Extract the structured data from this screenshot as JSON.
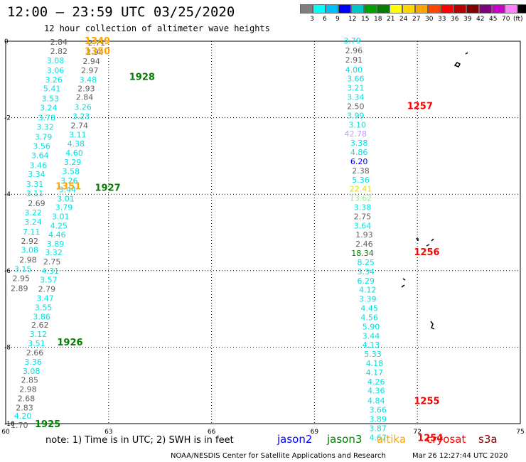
{
  "header": {
    "title": "12:00 — 23:59 UTC 03/25/2020",
    "subtitle": "12 hour collection of altimeter wave heights"
  },
  "colorbar": {
    "colors": [
      "#7f7f7f",
      "#00ffff",
      "#00bfff",
      "#0000ff",
      "#00c8c8",
      "#00a000",
      "#008000",
      "#ffff00",
      "#ffd700",
      "#ffa500",
      "#ff4500",
      "#ff0000",
      "#b40000",
      "#800000",
      "#800080",
      "#c800c8",
      "#ff80ff",
      "#000000"
    ],
    "labels": [
      "3",
      "6",
      "9",
      "12",
      "15",
      "18",
      "21",
      "24",
      "27",
      "30",
      "33",
      "36",
      "39",
      "42",
      "45",
      "70"
    ],
    "unit": "(ft)"
  },
  "chart_data": {
    "type": "scatter",
    "xlim": [
      60,
      75
    ],
    "ylim": [
      -10,
      0
    ],
    "x_ticks": [
      "60",
      "63",
      "66",
      "69",
      "72",
      "75"
    ],
    "y_ticks": [
      "0",
      "-2",
      "-4",
      "-6",
      "-8",
      "-10"
    ],
    "satellite_colors": {
      "jason2": "#0000ff",
      "jason3": "#008000",
      "altika": "#ffa500",
      "cryosat": "#ff0000",
      "s3a": "#800000"
    },
    "value_colors": {
      "gray": "#606060",
      "cyan": "#00e0e0",
      "lavender": "#c0a0ff",
      "blue": "#0000ff",
      "green": "#008000",
      "yellow": "#e0e000",
      "lightgreen": "#90ee90"
    },
    "points": [
      {
        "x": 61.55,
        "y": -0.02,
        "v": "2.84",
        "c": "gray"
      },
      {
        "x": 61.55,
        "y": -0.26,
        "v": "2.82",
        "c": "gray"
      },
      {
        "x": 61.45,
        "y": -0.5,
        "v": "3.08",
        "c": "cyan"
      },
      {
        "x": 61.45,
        "y": -0.76,
        "v": "3.06",
        "c": "cyan"
      },
      {
        "x": 61.4,
        "y": -1.0,
        "v": "3.26",
        "c": "cyan"
      },
      {
        "x": 61.35,
        "y": -1.24,
        "v": "5.41",
        "c": "cyan"
      },
      {
        "x": 61.3,
        "y": -1.5,
        "v": "3.53",
        "c": "cyan"
      },
      {
        "x": 61.25,
        "y": -1.74,
        "v": "3.24",
        "c": "cyan"
      },
      {
        "x": 61.2,
        "y": -2.0,
        "v": "3.78",
        "c": "cyan"
      },
      {
        "x": 61.15,
        "y": -2.24,
        "v": "3.32",
        "c": "cyan"
      },
      {
        "x": 61.1,
        "y": -2.5,
        "v": "3.79",
        "c": "cyan"
      },
      {
        "x": 61.05,
        "y": -2.74,
        "v": "3.56",
        "c": "cyan"
      },
      {
        "x": 61.0,
        "y": -2.98,
        "v": "3.64",
        "c": "cyan"
      },
      {
        "x": 60.95,
        "y": -3.24,
        "v": "3.46",
        "c": "cyan"
      },
      {
        "x": 60.9,
        "y": -3.48,
        "v": "3.34",
        "c": "cyan"
      },
      {
        "x": 60.85,
        "y": -3.74,
        "v": "3.31",
        "c": "cyan"
      },
      {
        "x": 60.85,
        "y": -3.98,
        "v": "3.11",
        "c": "cyan"
      },
      {
        "x": 60.9,
        "y": -4.24,
        "v": "2.69",
        "c": "gray"
      },
      {
        "x": 60.8,
        "y": -4.48,
        "v": "3.22",
        "c": "cyan"
      },
      {
        "x": 60.8,
        "y": -4.72,
        "v": "3.24",
        "c": "cyan"
      },
      {
        "x": 60.75,
        "y": -4.98,
        "v": "7.11",
        "c": "cyan"
      },
      {
        "x": 60.7,
        "y": -5.22,
        "v": "2.92",
        "c": "gray"
      },
      {
        "x": 60.7,
        "y": -5.46,
        "v": "3.08",
        "c": "cyan"
      },
      {
        "x": 60.65,
        "y": -5.72,
        "v": "2.98",
        "c": "gray"
      },
      {
        "x": 60.5,
        "y": -5.96,
        "v": "3.15",
        "c": "cyan"
      },
      {
        "x": 60.45,
        "y": -6.2,
        "v": "2.95",
        "c": "gray"
      },
      {
        "x": 60.4,
        "y": -6.46,
        "v": "2.89",
        "c": "gray"
      },
      {
        "x": 62.65,
        "y": -0.04,
        "v": "2.71",
        "c": "gray"
      },
      {
        "x": 62.6,
        "y": -0.28,
        "v": "2.94",
        "c": "gray"
      },
      {
        "x": 62.5,
        "y": -0.52,
        "v": "2.94",
        "c": "gray"
      },
      {
        "x": 62.45,
        "y": -0.76,
        "v": "2.97",
        "c": "gray"
      },
      {
        "x": 62.4,
        "y": -1.0,
        "v": "3.48",
        "c": "cyan"
      },
      {
        "x": 62.35,
        "y": -1.24,
        "v": "2.93",
        "c": "gray"
      },
      {
        "x": 62.3,
        "y": -1.46,
        "v": "2.84",
        "c": "gray"
      },
      {
        "x": 62.25,
        "y": -1.72,
        "v": "3.26",
        "c": "cyan"
      },
      {
        "x": 62.2,
        "y": -1.96,
        "v": "3.23",
        "c": "cyan"
      },
      {
        "x": 62.15,
        "y": -2.2,
        "v": "2.74",
        "c": "gray"
      },
      {
        "x": 62.1,
        "y": -2.44,
        "v": "3.11",
        "c": "cyan"
      },
      {
        "x": 62.05,
        "y": -2.68,
        "v": "4.38",
        "c": "cyan"
      },
      {
        "x": 62.0,
        "y": -2.92,
        "v": "4.60",
        "c": "cyan"
      },
      {
        "x": 61.95,
        "y": -3.16,
        "v": "3.29",
        "c": "cyan"
      },
      {
        "x": 61.9,
        "y": -3.4,
        "v": "3.58",
        "c": "cyan"
      },
      {
        "x": 61.85,
        "y": -3.64,
        "v": "3.26",
        "c": "cyan"
      },
      {
        "x": 61.8,
        "y": -3.88,
        "v": "3.44",
        "c": "cyan"
      },
      {
        "x": 61.75,
        "y": -4.12,
        "v": "3.01",
        "c": "cyan"
      },
      {
        "x": 61.7,
        "y": -4.34,
        "v": "3.79",
        "c": "cyan"
      },
      {
        "x": 61.6,
        "y": -4.58,
        "v": "3.01",
        "c": "cyan"
      },
      {
        "x": 61.55,
        "y": -4.82,
        "v": "4.25",
        "c": "cyan"
      },
      {
        "x": 61.5,
        "y": -5.06,
        "v": "4.46",
        "c": "cyan"
      },
      {
        "x": 61.45,
        "y": -5.3,
        "v": "3.89",
        "c": "cyan"
      },
      {
        "x": 61.4,
        "y": -5.52,
        "v": "3.32",
        "c": "cyan"
      },
      {
        "x": 61.35,
        "y": -5.76,
        "v": "2.75",
        "c": "gray"
      },
      {
        "x": 61.3,
        "y": -6.0,
        "v": "4.31",
        "c": "cyan"
      },
      {
        "x": 61.25,
        "y": -6.24,
        "v": "3.57",
        "c": "cyan"
      },
      {
        "x": 61.2,
        "y": -6.48,
        "v": "2.79",
        "c": "gray"
      },
      {
        "x": 61.15,
        "y": -6.72,
        "v": "3.47",
        "c": "cyan"
      },
      {
        "x": 61.1,
        "y": -6.96,
        "v": "3.55",
        "c": "cyan"
      },
      {
        "x": 61.05,
        "y": -7.2,
        "v": "3.86",
        "c": "cyan"
      },
      {
        "x": 61.0,
        "y": -7.42,
        "v": "2.62",
        "c": "gray"
      },
      {
        "x": 60.95,
        "y": -7.66,
        "v": "3.12",
        "c": "cyan"
      },
      {
        "x": 60.9,
        "y": -7.9,
        "v": "3.51",
        "c": "cyan"
      },
      {
        "x": 60.85,
        "y": -8.14,
        "v": "2.66",
        "c": "gray"
      },
      {
        "x": 60.8,
        "y": -8.38,
        "v": "3.36",
        "c": "cyan"
      },
      {
        "x": 60.75,
        "y": -8.62,
        "v": "3.08",
        "c": "cyan"
      },
      {
        "x": 60.7,
        "y": -8.86,
        "v": "2.85",
        "c": "gray"
      },
      {
        "x": 60.65,
        "y": -9.1,
        "v": "2.98",
        "c": "gray"
      },
      {
        "x": 60.6,
        "y": -9.34,
        "v": "2.68",
        "c": "gray"
      },
      {
        "x": 60.55,
        "y": -9.58,
        "v": "2.83",
        "c": "gray"
      },
      {
        "x": 60.5,
        "y": -9.8,
        "v": "4.20",
        "c": "cyan"
      },
      {
        "x": 60.4,
        "y": -10.04,
        "v": "1.70",
        "c": "gray"
      },
      {
        "x": 70.1,
        "y": 0.02,
        "v": "3.79",
        "c": "cyan"
      },
      {
        "x": 70.15,
        "y": -0.24,
        "v": "2.96",
        "c": "gray"
      },
      {
        "x": 70.15,
        "y": -0.48,
        "v": "2.91",
        "c": "gray"
      },
      {
        "x": 70.15,
        "y": -0.74,
        "v": "4.00",
        "c": "cyan"
      },
      {
        "x": 70.2,
        "y": -0.98,
        "v": "3.66",
        "c": "cyan"
      },
      {
        "x": 70.2,
        "y": -1.22,
        "v": "3.21",
        "c": "cyan"
      },
      {
        "x": 70.2,
        "y": -1.46,
        "v": "3.34",
        "c": "cyan"
      },
      {
        "x": 70.2,
        "y": -1.7,
        "v": "2.50",
        "c": "gray"
      },
      {
        "x": 70.2,
        "y": -1.94,
        "v": "3.99",
        "c": "cyan"
      },
      {
        "x": 70.25,
        "y": -2.18,
        "v": "3.10",
        "c": "cyan"
      },
      {
        "x": 70.2,
        "y": -2.42,
        "v": "42.78",
        "c": "lavender"
      },
      {
        "x": 70.3,
        "y": -2.66,
        "v": "3.38",
        "c": "cyan"
      },
      {
        "x": 70.3,
        "y": -2.9,
        "v": "4.86",
        "c": "cyan"
      },
      {
        "x": 70.3,
        "y": -3.14,
        "v": "6.20",
        "c": "blue"
      },
      {
        "x": 70.35,
        "y": -3.38,
        "v": "2.38",
        "c": "gray"
      },
      {
        "x": 70.35,
        "y": -3.62,
        "v": "5.36",
        "c": "cyan"
      },
      {
        "x": 70.35,
        "y": -3.86,
        "v": "22.41",
        "c": "yellow"
      },
      {
        "x": 70.35,
        "y": -4.1,
        "v": "13.62",
        "c": "lightgreen"
      },
      {
        "x": 70.4,
        "y": -4.34,
        "v": "3.38",
        "c": "cyan"
      },
      {
        "x": 70.4,
        "y": -4.58,
        "v": "2.75",
        "c": "gray"
      },
      {
        "x": 70.4,
        "y": -4.82,
        "v": "3.64",
        "c": "cyan"
      },
      {
        "x": 70.45,
        "y": -5.06,
        "v": "1.93",
        "c": "gray"
      },
      {
        "x": 70.45,
        "y": -5.3,
        "v": "2.46",
        "c": "gray"
      },
      {
        "x": 70.4,
        "y": -5.54,
        "v": "18.34",
        "c": "green"
      },
      {
        "x": 70.5,
        "y": -5.78,
        "v": "8.25",
        "c": "cyan"
      },
      {
        "x": 70.5,
        "y": -6.02,
        "v": "3.34",
        "c": "cyan"
      },
      {
        "x": 70.5,
        "y": -6.26,
        "v": "6.29",
        "c": "cyan"
      },
      {
        "x": 70.55,
        "y": -6.5,
        "v": "4.12",
        "c": "cyan"
      },
      {
        "x": 70.55,
        "y": -6.74,
        "v": "3.39",
        "c": "cyan"
      },
      {
        "x": 70.6,
        "y": -6.98,
        "v": "4.45",
        "c": "cyan"
      },
      {
        "x": 70.6,
        "y": -7.22,
        "v": "4.56",
        "c": "cyan"
      },
      {
        "x": 70.65,
        "y": -7.46,
        "v": "5.90",
        "c": "cyan"
      },
      {
        "x": 70.65,
        "y": -7.7,
        "v": "3.44",
        "c": "cyan"
      },
      {
        "x": 70.65,
        "y": -7.94,
        "v": "4.13",
        "c": "cyan"
      },
      {
        "x": 70.7,
        "y": -8.18,
        "v": "5.33",
        "c": "cyan"
      },
      {
        "x": 70.75,
        "y": -8.42,
        "v": "4.18",
        "c": "cyan"
      },
      {
        "x": 70.75,
        "y": -8.66,
        "v": "4.17",
        "c": "cyan"
      },
      {
        "x": 70.8,
        "y": -8.9,
        "v": "4.26",
        "c": "cyan"
      },
      {
        "x": 70.8,
        "y": -9.14,
        "v": "4.36",
        "c": "cyan"
      },
      {
        "x": 70.8,
        "y": -9.4,
        "v": "4.84",
        "c": "cyan"
      },
      {
        "x": 70.85,
        "y": -9.64,
        "v": "3.66",
        "c": "cyan"
      },
      {
        "x": 70.85,
        "y": -9.88,
        "v": "3.89",
        "c": "cyan"
      },
      {
        "x": 70.85,
        "y": -10.12,
        "v": "3.87",
        "c": "cyan"
      },
      {
        "x": 70.85,
        "y": -10.36,
        "v": "4.67",
        "c": "cyan"
      }
    ],
    "pass_labels": [
      {
        "x": 62.3,
        "y": 0.02,
        "label": "1349",
        "sat": "altika"
      },
      {
        "x": 62.3,
        "y": -0.25,
        "label": "1350",
        "sat": "altika"
      },
      {
        "x": 63.6,
        "y": -0.92,
        "label": "1928",
        "sat": "jason3"
      },
      {
        "x": 71.7,
        "y": -1.68,
        "label": "1257",
        "sat": "cryosat"
      },
      {
        "x": 61.45,
        "y": -3.78,
        "label": "1351",
        "sat": "altika"
      },
      {
        "x": 62.6,
        "y": -3.82,
        "label": "1927",
        "sat": "jason3"
      },
      {
        "x": 71.9,
        "y": -5.5,
        "label": "1256",
        "sat": "cryosat"
      },
      {
        "x": 61.5,
        "y": -7.86,
        "label": "1926",
        "sat": "jason3"
      },
      {
        "x": 60.85,
        "y": -10.0,
        "label": "1925",
        "sat": "jason3"
      },
      {
        "x": 71.9,
        "y": -9.4,
        "label": "1255",
        "sat": "cryosat"
      },
      {
        "x": 72.0,
        "y": -10.36,
        "label": "1254",
        "sat": "cryosat"
      }
    ]
  },
  "footer": {
    "note": "note:  1) Time is in UTC;  2) SWH is in feet",
    "legend": [
      {
        "label": "jason2",
        "color": "#0000ff"
      },
      {
        "label": "jason3",
        "color": "#008000"
      },
      {
        "label": "altika",
        "color": "#ffa500"
      },
      {
        "label": "cryosat",
        "color": "#ff0000"
      },
      {
        "label": "s3a",
        "color": "#800000"
      }
    ],
    "credit": "NOAA/NESDIS Center for Satellite Applications and Research",
    "timestamp": "Mar 26 12:27:44 UTC 2020"
  }
}
